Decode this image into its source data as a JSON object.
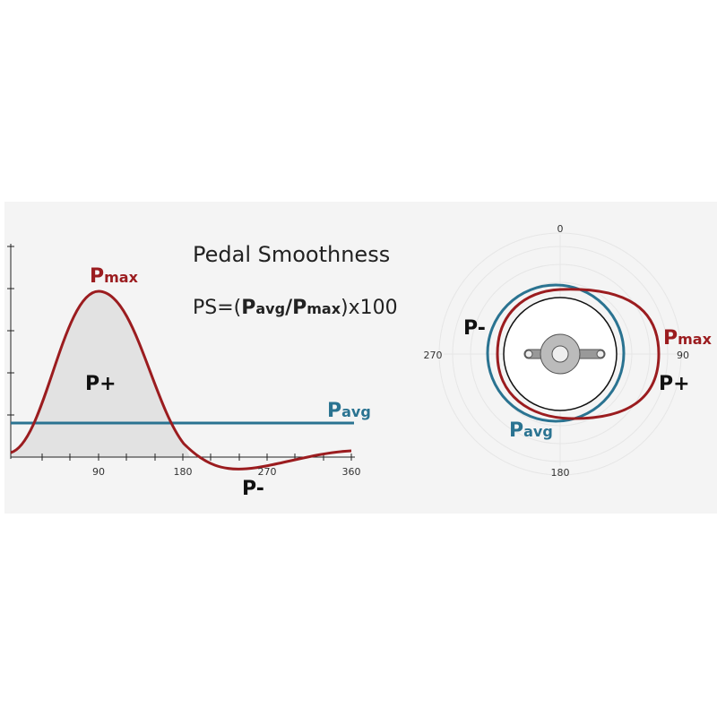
{
  "title": "Pedal Smoothness",
  "formula": {
    "lead": "PS=(",
    "p1": "P",
    "sub1": "avg",
    "slash": "/",
    "p2": "P",
    "sub2": "max",
    "tail": ")x100"
  },
  "left_chart": {
    "pmax": {
      "p": "P",
      "sub": "max"
    },
    "pplus": "P+",
    "pminus": "P-",
    "pavg": {
      "p": "P",
      "sub": "avg"
    },
    "x_labels": [
      "90",
      "180",
      "270",
      "360"
    ]
  },
  "polar": {
    "angle_labels": [
      "0",
      "90",
      "180",
      "270"
    ],
    "pmax": {
      "p": "P",
      "sub": "max"
    },
    "pplus": "P+",
    "pminus": "P-",
    "pavg": {
      "p": "P",
      "sub": "avg"
    }
  }
}
